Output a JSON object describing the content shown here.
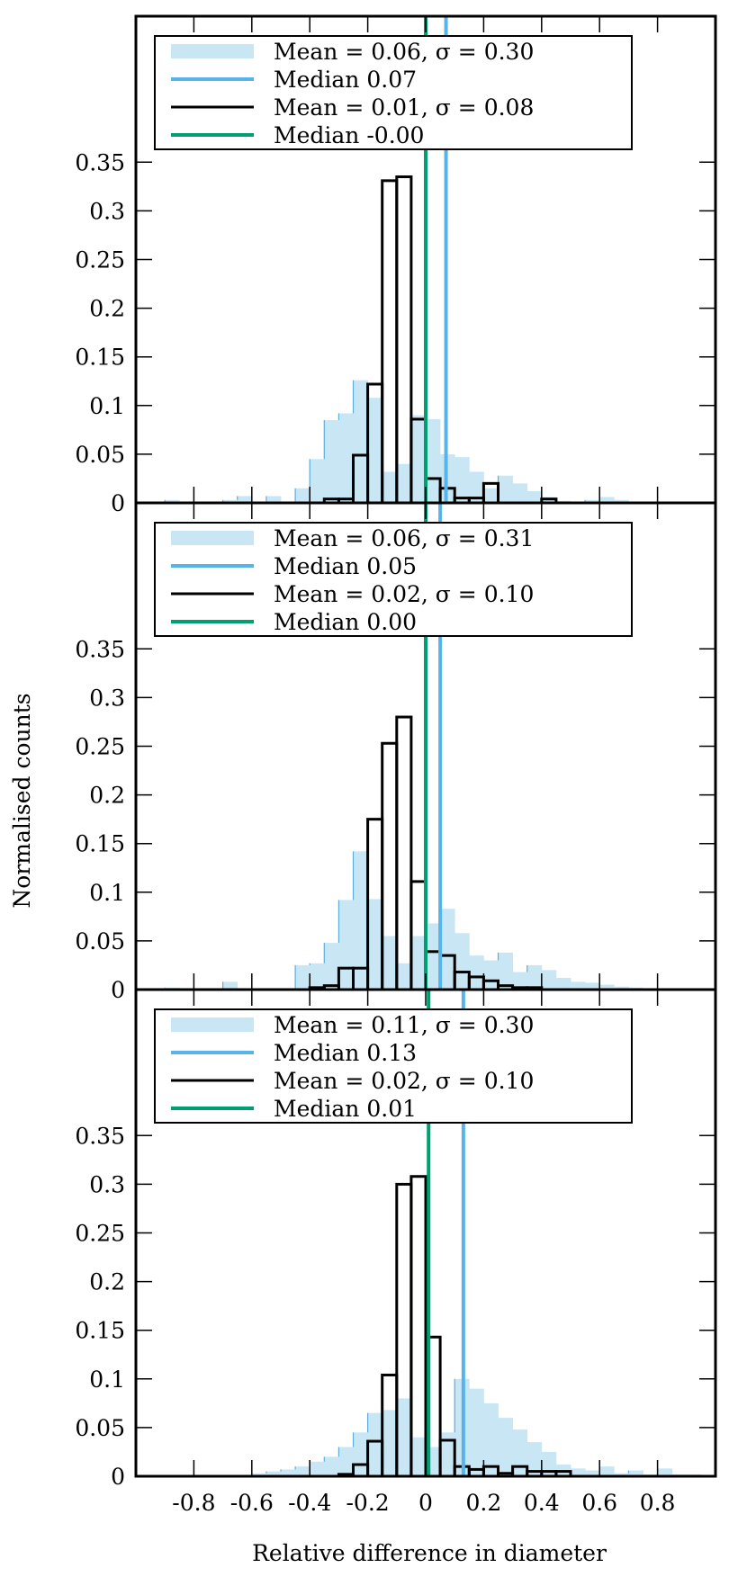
{
  "figure": {
    "xlabel": "Relative difference in diameter",
    "ylabel": "Normalised counts"
  },
  "colors": {
    "fill_hist": "#c9e6f5",
    "fill_edge": "#5aaee0",
    "median_blue": "#56b4e9",
    "median_green": "#009e73",
    "black": "#000000"
  },
  "chart_data": [
    {
      "type": "bar",
      "panel": "top",
      "xlim": [
        -1.0,
        1.0
      ],
      "ylim": [
        0,
        0.5
      ],
      "xticks": [
        -0.8,
        -0.6,
        -0.4,
        -0.2,
        0,
        0.2,
        0.4,
        0.6,
        0.8
      ],
      "yticks": [
        0,
        0.05,
        0.1,
        0.15,
        0.2,
        0.25,
        0.3,
        0.35
      ],
      "ytick_labels": [
        "0",
        "0.05",
        "0.1",
        "0.15",
        "0.2",
        "0.25",
        "0.3",
        "0.35"
      ],
      "legend_position": "upper-left",
      "legend": [
        "Mean = 0.06, σ = 0.30",
        "Median 0.07",
        "Mean = 0.01, σ = 0.08",
        "Median -0.00"
      ],
      "wide": {
        "bin_start": -1.0,
        "bin_width": 0.05,
        "values": [
          0,
          0,
          0.003,
          0,
          0,
          0,
          0.003,
          0.007,
          0,
          0.007,
          0,
          0.015,
          0.045,
          0.085,
          0.092,
          0.126,
          0.108,
          0.032,
          0.04,
          0.09,
          0.086,
          0.05,
          0.047,
          0.032,
          0.015,
          0.028,
          0.02,
          0.012,
          0.006,
          0.002,
          0.001,
          0.003,
          0.006,
          0.003,
          0,
          0,
          0,
          0,
          0,
          0
        ]
      },
      "narrow": {
        "bin_start": -0.35,
        "bin_width": 0.05,
        "values": [
          0.004,
          0.004,
          0.049,
          0.122,
          0.331,
          0.335,
          0.086,
          0.025,
          0.015,
          0.005,
          0.005,
          0.02,
          0,
          0,
          0,
          0.004
        ]
      },
      "median_wide": 0.07,
      "median_narrow": -0.0
    },
    {
      "type": "bar",
      "panel": "middle",
      "xlim": [
        -1.0,
        1.0
      ],
      "ylim": [
        0,
        0.5
      ],
      "xticks": [
        -0.8,
        -0.6,
        -0.4,
        -0.2,
        0,
        0.2,
        0.4,
        0.6,
        0.8
      ],
      "yticks": [
        0,
        0.05,
        0.1,
        0.15,
        0.2,
        0.25,
        0.3,
        0.35
      ],
      "ytick_labels": [
        "0",
        "0.05",
        "0.1",
        "0.15",
        "0.2",
        "0.25",
        "0.3",
        "0.35"
      ],
      "legend_position": "upper-left",
      "legend": [
        "Mean = 0.06, σ = 0.31",
        "Median 0.05",
        "Mean = 0.02, σ = 0.10",
        "Median 0.00"
      ],
      "wide": {
        "bin_start": -1.0,
        "bin_width": 0.05,
        "values": [
          0,
          0,
          0.002,
          0,
          0,
          0,
          0.008,
          0,
          0,
          0,
          0,
          0.025,
          0.027,
          0.048,
          0.092,
          0.142,
          0.093,
          0.055,
          0.027,
          0.055,
          0.068,
          0.083,
          0.058,
          0.035,
          0.03,
          0.038,
          0.018,
          0.025,
          0.02,
          0.012,
          0.008,
          0.007,
          0.005,
          0.003,
          0.002,
          0.001,
          0,
          0,
          0,
          0
        ]
      },
      "narrow": {
        "bin_start": -0.4,
        "bin_width": 0.05,
        "values": [
          0.002,
          0.004,
          0.022,
          0.022,
          0.175,
          0.253,
          0.28,
          0.111,
          0.039,
          0.035,
          0.018,
          0.013,
          0.009,
          0.004,
          0.002,
          0.002,
          0,
          0,
          0
        ]
      },
      "median_wide": 0.05,
      "median_narrow": 0.0
    },
    {
      "type": "bar",
      "panel": "bottom",
      "xlim": [
        -1.0,
        1.0
      ],
      "ylim": [
        0,
        0.5
      ],
      "xticks": [
        -0.8,
        -0.6,
        -0.4,
        -0.2,
        0,
        0.2,
        0.4,
        0.6,
        0.8
      ],
      "xtick_labels": [
        "-0.8",
        "-0.6",
        "-0.4",
        "-0.2",
        "0",
        "0.2",
        "0.4",
        "0.6",
        "0.8"
      ],
      "yticks": [
        0,
        0.05,
        0.1,
        0.15,
        0.2,
        0.25,
        0.3,
        0.35
      ],
      "ytick_labels": [
        "0",
        "0.05",
        "0.1",
        "0.15",
        "0.2",
        "0.25",
        "0.3",
        "0.35"
      ],
      "legend_position": "upper-left",
      "legend": [
        "Mean = 0.11, σ = 0.30",
        "Median 0.13",
        "Mean = 0.02, σ = 0.10",
        "Median 0.01"
      ],
      "wide": {
        "bin_start": -1.0,
        "bin_width": 0.05,
        "values": [
          0,
          0,
          0,
          0,
          0,
          0,
          0,
          0,
          0.003,
          0.005,
          0.007,
          0.01,
          0.015,
          0.02,
          0.03,
          0.045,
          0.065,
          0.068,
          0.08,
          0.04,
          0.03,
          0.045,
          0.1,
          0.09,
          0.075,
          0.06,
          0.048,
          0.035,
          0.025,
          0.012,
          0.008,
          0.006,
          0.01,
          0.003,
          0.006,
          0.002,
          0.008,
          0.002,
          0.002,
          0
        ]
      },
      "narrow": {
        "bin_start": -0.3,
        "bin_width": 0.05,
        "values": [
          0.002,
          0.012,
          0.036,
          0.104,
          0.3,
          0.308,
          0.143,
          0.037,
          0.01,
          0.007,
          0.01,
          0.003,
          0.01,
          0.005,
          0.005,
          0.005,
          0
        ]
      },
      "median_wide": 0.13,
      "median_narrow": 0.01
    }
  ]
}
